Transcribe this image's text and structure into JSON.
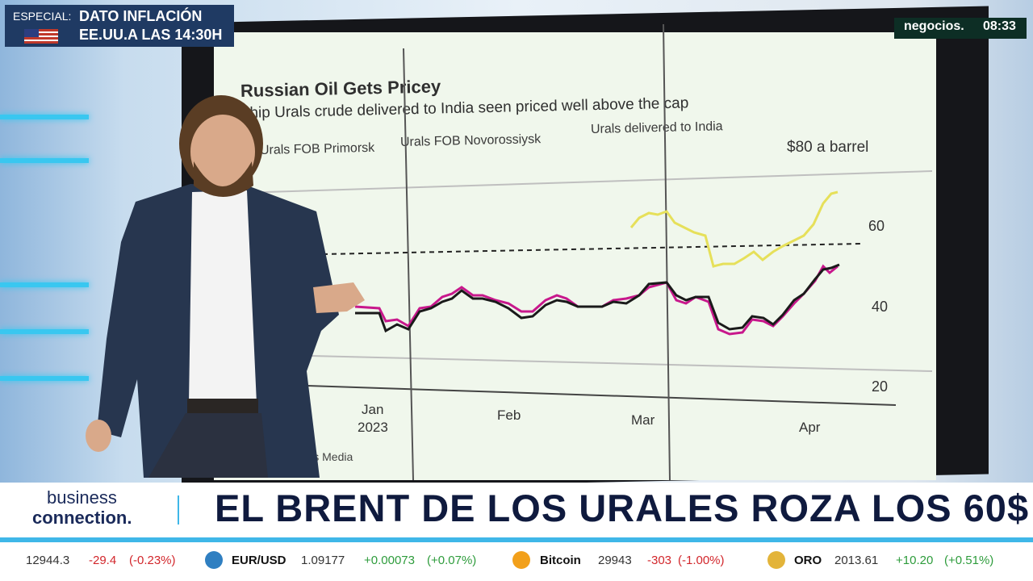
{
  "banner": {
    "label": "ESPECIAL:",
    "line1": "DATO INFLACIÓN",
    "line2": "EE.UU.A LAS 14:30H"
  },
  "channel": {
    "logo": "negocios.",
    "time": "08:33"
  },
  "chart": {
    "title": "Russian Oil Gets Pricey",
    "subtitle": "ship Urals crude delivered to India seen priced well above the cap",
    "legend": [
      {
        "name": "Urals FOB Primorsk",
        "color": "#c8188c"
      },
      {
        "name": "Urals FOB Novorossiysk",
        "color": "#1a1a1a"
      },
      {
        "name": "Urals delivered to India",
        "color": "#e6e05a"
      }
    ],
    "unit_label": "$80 a barrel",
    "y_ticks": [
      "60",
      "40",
      "20"
    ],
    "x_ticks": [
      {
        "label": "Jan",
        "sub": "2023"
      },
      {
        "label": "Feb",
        "sub": ""
      },
      {
        "label": "Mar",
        "sub": ""
      },
      {
        "label": "Apr",
        "sub": ""
      }
    ],
    "source": "rgus Media"
  },
  "lower_third": {
    "show_line1": "business",
    "show_line2": "connection.",
    "headline": "EL BRENT DE LOS URALES ROZA LOS 60$"
  },
  "ticker": [
    {
      "name": "",
      "value": "12944.3",
      "change": "-29.4",
      "pct": "(-0.23%)",
      "direction": "down",
      "icon": ""
    },
    {
      "name": "EUR/USD",
      "value": "1.09177",
      "change": "+0.00073",
      "pct": "(+0.07%)",
      "direction": "up",
      "icon": "globe-icon"
    },
    {
      "name": "Bitcoin",
      "value": "29943",
      "change": "-303",
      "pct": "(-1.00%)",
      "direction": "down",
      "icon": "bitcoin-icon"
    },
    {
      "name": "ORO",
      "value": "2013.61",
      "change": "+10.20",
      "pct": "(+0.51%)",
      "direction": "up",
      "icon": "gold-icon"
    }
  ]
}
